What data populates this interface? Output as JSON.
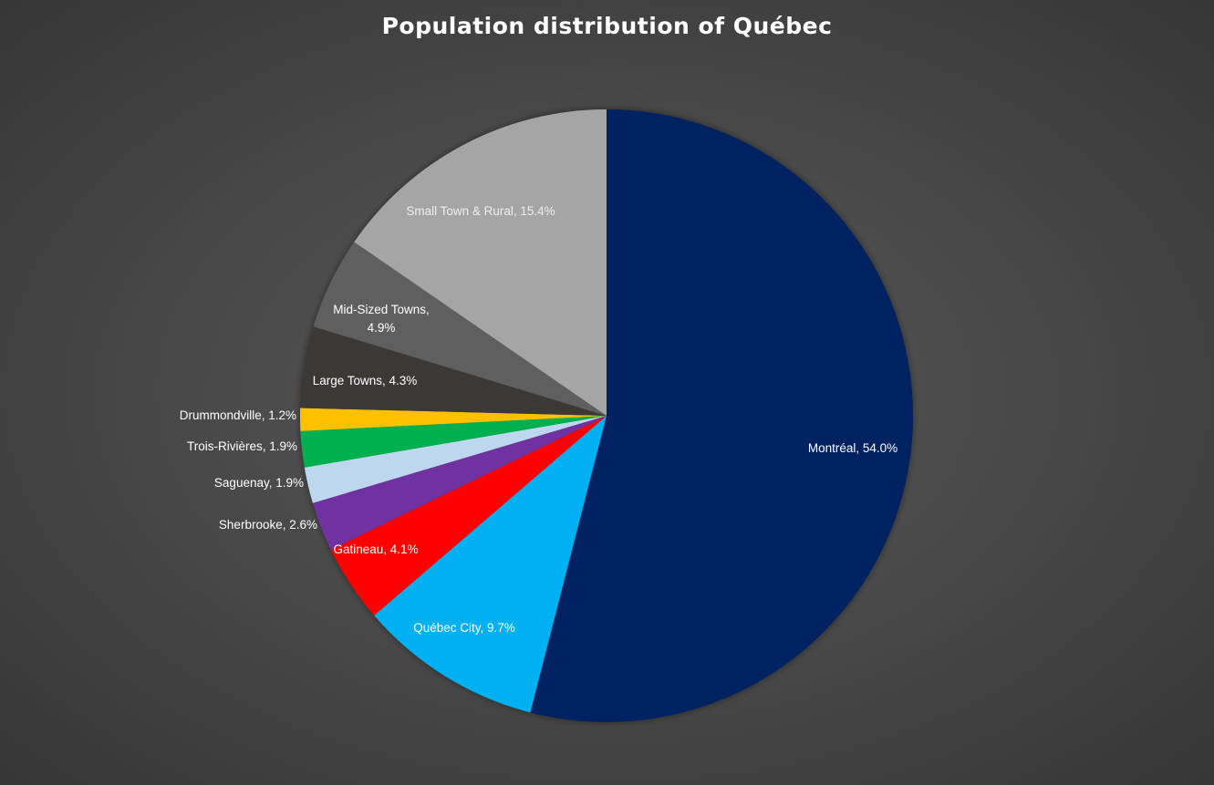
{
  "chart_data": {
    "type": "pie",
    "title": "Population distribution of Québec",
    "slices": [
      {
        "label": "Montréal",
        "value": 54.0,
        "display": "Montréal, 54.0%",
        "color": "#002060",
        "label_color": "#ffffff"
      },
      {
        "label": "Québec City",
        "value": 9.7,
        "display": "Québec City, 9.7%",
        "color": "#00b0f0",
        "label_color": "#ffffff"
      },
      {
        "label": "Gatineau",
        "value": 4.1,
        "display": "Gatineau, 4.1%",
        "color": "#ff0000",
        "label_color": "#ffffff"
      },
      {
        "label": "Sherbrooke",
        "value": 2.6,
        "display": "Sherbrooke, 2.6%",
        "color": "#7030a0",
        "label_color": "#ffffff"
      },
      {
        "label": "Saguenay",
        "value": 1.9,
        "display": "Saguenay, 1.9%",
        "color": "#bdd7ee",
        "label_color": "#ffffff"
      },
      {
        "label": "Trois-Rivières",
        "value": 1.9,
        "display": "Trois-Rivières, 1.9%",
        "color": "#00b050",
        "label_color": "#ffffff"
      },
      {
        "label": "Drummondville",
        "value": 1.2,
        "display": "Drummondville, 1.2%",
        "color": "#ffc000",
        "label_color": "#ffffff"
      },
      {
        "label": "Large Towns",
        "value": 4.3,
        "display": "Large Towns, 4.3%",
        "color": "#3a3838",
        "label_color": "#ffffff"
      },
      {
        "label": "Mid-Sized Towns",
        "value": 4.9,
        "display": [
          "Mid-Sized Towns,",
          "4.9%"
        ],
        "color": "#5f5f5f",
        "label_color": "#ffffff"
      },
      {
        "label": "Small Town & Rural",
        "value": 15.4,
        "display": "Small Town & Rural, 15.4%",
        "color": "#a5a5a5",
        "label_color": "#eeeeee"
      }
    ]
  }
}
